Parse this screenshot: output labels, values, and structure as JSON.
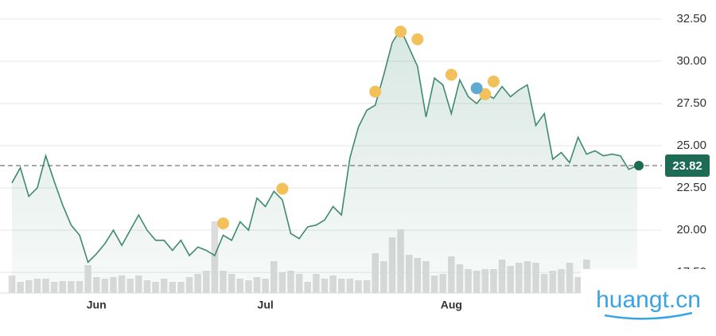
{
  "chart_data": {
    "type": "line",
    "categories": [
      null,
      null,
      null,
      null,
      null,
      null,
      null,
      null,
      null,
      null,
      "Jun",
      null,
      null,
      null,
      null,
      null,
      null,
      null,
      null,
      null,
      null,
      null,
      null,
      null,
      null,
      null,
      null,
      null,
      null,
      null,
      "Jul",
      null,
      null,
      null,
      null,
      null,
      null,
      null,
      null,
      null,
      null,
      null,
      null,
      null,
      null,
      null,
      null,
      null,
      null,
      null,
      null,
      null,
      "Aug",
      null,
      null,
      null,
      null,
      null,
      null,
      null,
      null,
      null,
      null,
      null,
      null,
      null,
      null,
      null,
      null,
      null,
      null,
      null,
      null,
      null,
      null
    ],
    "series": [
      {
        "color": "#3f8a6f",
        "values": [
          22.8,
          23.7,
          22.0,
          22.5,
          24.4,
          22.9,
          21.5,
          20.3,
          19.7,
          18.1,
          18.6,
          19.2,
          20.0,
          19.1,
          20.0,
          20.9,
          20.0,
          19.4,
          19.4,
          18.8,
          19.4,
          18.5,
          19.0,
          18.8,
          18.5,
          19.7,
          19.4,
          20.5,
          20.0,
          21.9,
          21.4,
          22.3,
          21.8,
          19.8,
          19.5,
          20.2,
          20.3,
          20.6,
          21.4,
          20.9,
          24.3,
          26.1,
          27.1,
          27.4,
          29.2,
          31.1,
          31.9,
          30.8,
          29.7,
          26.7,
          29.0,
          28.6,
          26.9,
          28.9,
          27.9,
          27.5,
          28.1,
          27.8,
          28.5,
          27.9,
          28.3,
          28.6,
          26.2,
          26.9,
          24.2,
          24.6,
          24.0,
          25.5,
          24.5,
          24.7,
          24.4,
          24.5,
          24.4,
          23.6,
          23.82
        ]
      },
      {
        "type": "scatter",
        "color": "#f2c15b",
        "values": [
          null,
          null,
          null,
          null,
          null,
          null,
          null,
          null,
          null,
          null,
          null,
          null,
          null,
          null,
          null,
          null,
          null,
          null,
          null,
          null,
          null,
          null,
          null,
          null,
          null,
          20.4,
          null,
          null,
          null,
          null,
          null,
          null,
          22.45,
          null,
          null,
          null,
          null,
          null,
          null,
          null,
          null,
          null,
          null,
          28.2,
          null,
          null,
          31.75,
          null,
          31.3,
          null,
          null,
          null,
          29.2,
          null,
          null,
          null,
          28.05,
          28.8,
          null,
          null,
          null,
          null,
          null,
          null,
          null,
          null,
          null,
          null,
          null,
          null,
          null,
          null,
          null,
          null,
          null
        ]
      },
      {
        "type": "scatter",
        "color": "#5fa9d3",
        "values": [
          null,
          null,
          null,
          null,
          null,
          null,
          null,
          null,
          null,
          null,
          null,
          null,
          null,
          null,
          null,
          null,
          null,
          null,
          null,
          null,
          null,
          null,
          null,
          null,
          null,
          null,
          null,
          null,
          null,
          null,
          null,
          null,
          null,
          null,
          null,
          null,
          null,
          null,
          null,
          null,
          null,
          null,
          null,
          null,
          null,
          null,
          null,
          null,
          null,
          null,
          null,
          null,
          null,
          null,
          null,
          28.4,
          null,
          null,
          null,
          null,
          null,
          null,
          null,
          null,
          null,
          null,
          null,
          null,
          null,
          null,
          null,
          null,
          null,
          null,
          null
        ]
      }
    ],
    "volume": [
      22,
      14,
      16,
      18,
      18,
      14,
      15,
      15,
      15,
      35,
      20,
      18,
      20,
      22,
      18,
      22,
      16,
      14,
      18,
      14,
      14,
      20,
      24,
      28,
      90,
      28,
      24,
      18,
      16,
      20,
      18,
      40,
      26,
      28,
      24,
      14,
      24,
      18,
      22,
      18,
      18,
      16,
      16,
      50,
      40,
      70,
      80,
      48,
      44,
      40,
      22,
      24,
      46,
      36,
      30,
      28,
      30,
      30,
      42,
      34,
      38,
      40,
      38,
      24,
      28,
      30,
      38,
      20,
      42,
      28,
      28,
      22,
      30,
      26,
      28
    ],
    "volume_color": "#dcdcdc",
    "price_tag_color": "#1d6b55",
    "ylim": [
      16.28,
      33.39
    ],
    "yticks": [
      {
        "value": 17.5,
        "label": "17.50"
      },
      {
        "value": 20,
        "label": "20.00"
      },
      {
        "value": 22.5,
        "label": "22.50"
      },
      {
        "value": 25,
        "label": "25.00"
      },
      {
        "value": 27.5,
        "label": "27.50"
      },
      {
        "value": 30,
        "label": "30.00"
      },
      {
        "value": 32.5,
        "label": "32.50"
      }
    ],
    "grid": true
  },
  "watermark": "huangt.cn"
}
